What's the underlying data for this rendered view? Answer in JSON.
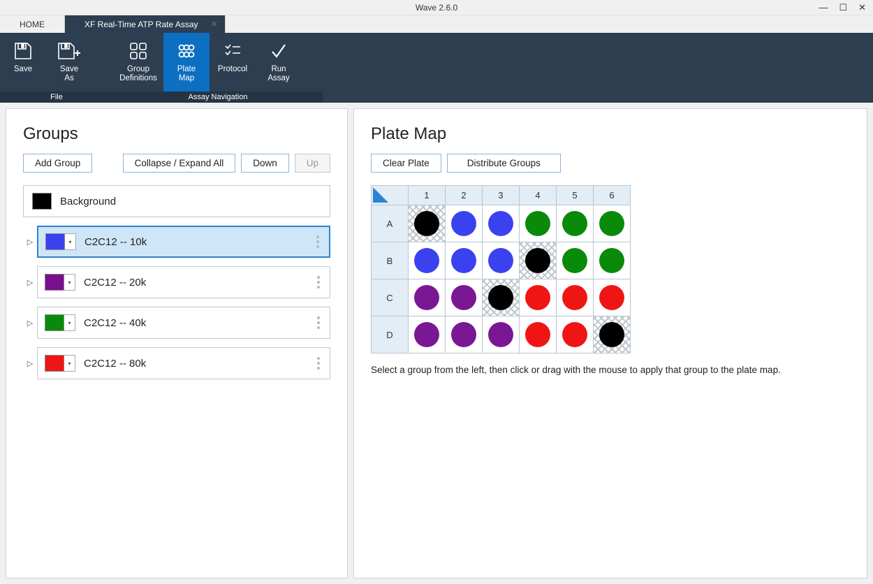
{
  "window": {
    "title": "Wave 2.6.0"
  },
  "tabs": {
    "home": "HOME",
    "active": "XF Real-Time ATP Rate Assay"
  },
  "ribbon": {
    "file_label": "File",
    "nav_label": "Assay Navigation",
    "save": "Save",
    "save_as": "Save\nAs",
    "group_def": "Group\nDefinitions",
    "plate_map": "Plate\nMap",
    "protocol": "Protocol",
    "run_assay": "Run\nAssay"
  },
  "groups_panel": {
    "title": "Groups",
    "add": "Add Group",
    "collapse": "Collapse / Expand All",
    "down": "Down",
    "up": "Up",
    "background_label": "Background",
    "background_color": "#000000",
    "items": [
      {
        "name": "C2C12 -- 10k",
        "color": "#3a42f0",
        "selected": true
      },
      {
        "name": "C2C12 -- 20k",
        "color": "#7a0f8e",
        "selected": false
      },
      {
        "name": "C2C12 -- 40k",
        "color": "#0a8a0a",
        "selected": false
      },
      {
        "name": "C2C12 -- 80k",
        "color": "#f01515",
        "selected": false
      }
    ]
  },
  "plate_panel": {
    "title": "Plate Map",
    "clear": "Clear Plate",
    "distribute": "Distribute Groups",
    "cols": [
      "1",
      "2",
      "3",
      "4",
      "5",
      "6"
    ],
    "rows": [
      "A",
      "B",
      "C",
      "D"
    ],
    "wells": [
      [
        {
          "c": "#000000",
          "h": true
        },
        {
          "c": "#3a42f0"
        },
        {
          "c": "#3a42f0"
        },
        {
          "c": "#0a8a0a"
        },
        {
          "c": "#0a8a0a"
        },
        {
          "c": "#0a8a0a"
        }
      ],
      [
        {
          "c": "#3a42f0"
        },
        {
          "c": "#3a42f0"
        },
        {
          "c": "#3a42f0"
        },
        {
          "c": "#000000",
          "h": true
        },
        {
          "c": "#0a8a0a"
        },
        {
          "c": "#0a8a0a"
        }
      ],
      [
        {
          "c": "#7a1793"
        },
        {
          "c": "#7a1793"
        },
        {
          "c": "#000000",
          "h": true
        },
        {
          "c": "#f01515"
        },
        {
          "c": "#f01515"
        },
        {
          "c": "#f01515"
        }
      ],
      [
        {
          "c": "#7a1793"
        },
        {
          "c": "#7a1793"
        },
        {
          "c": "#7a1793"
        },
        {
          "c": "#f01515"
        },
        {
          "c": "#f01515"
        },
        {
          "c": "#000000",
          "h": true
        }
      ]
    ],
    "instruction": "Select a group from the left, then click or drag with the mouse to apply that group to the plate map."
  }
}
